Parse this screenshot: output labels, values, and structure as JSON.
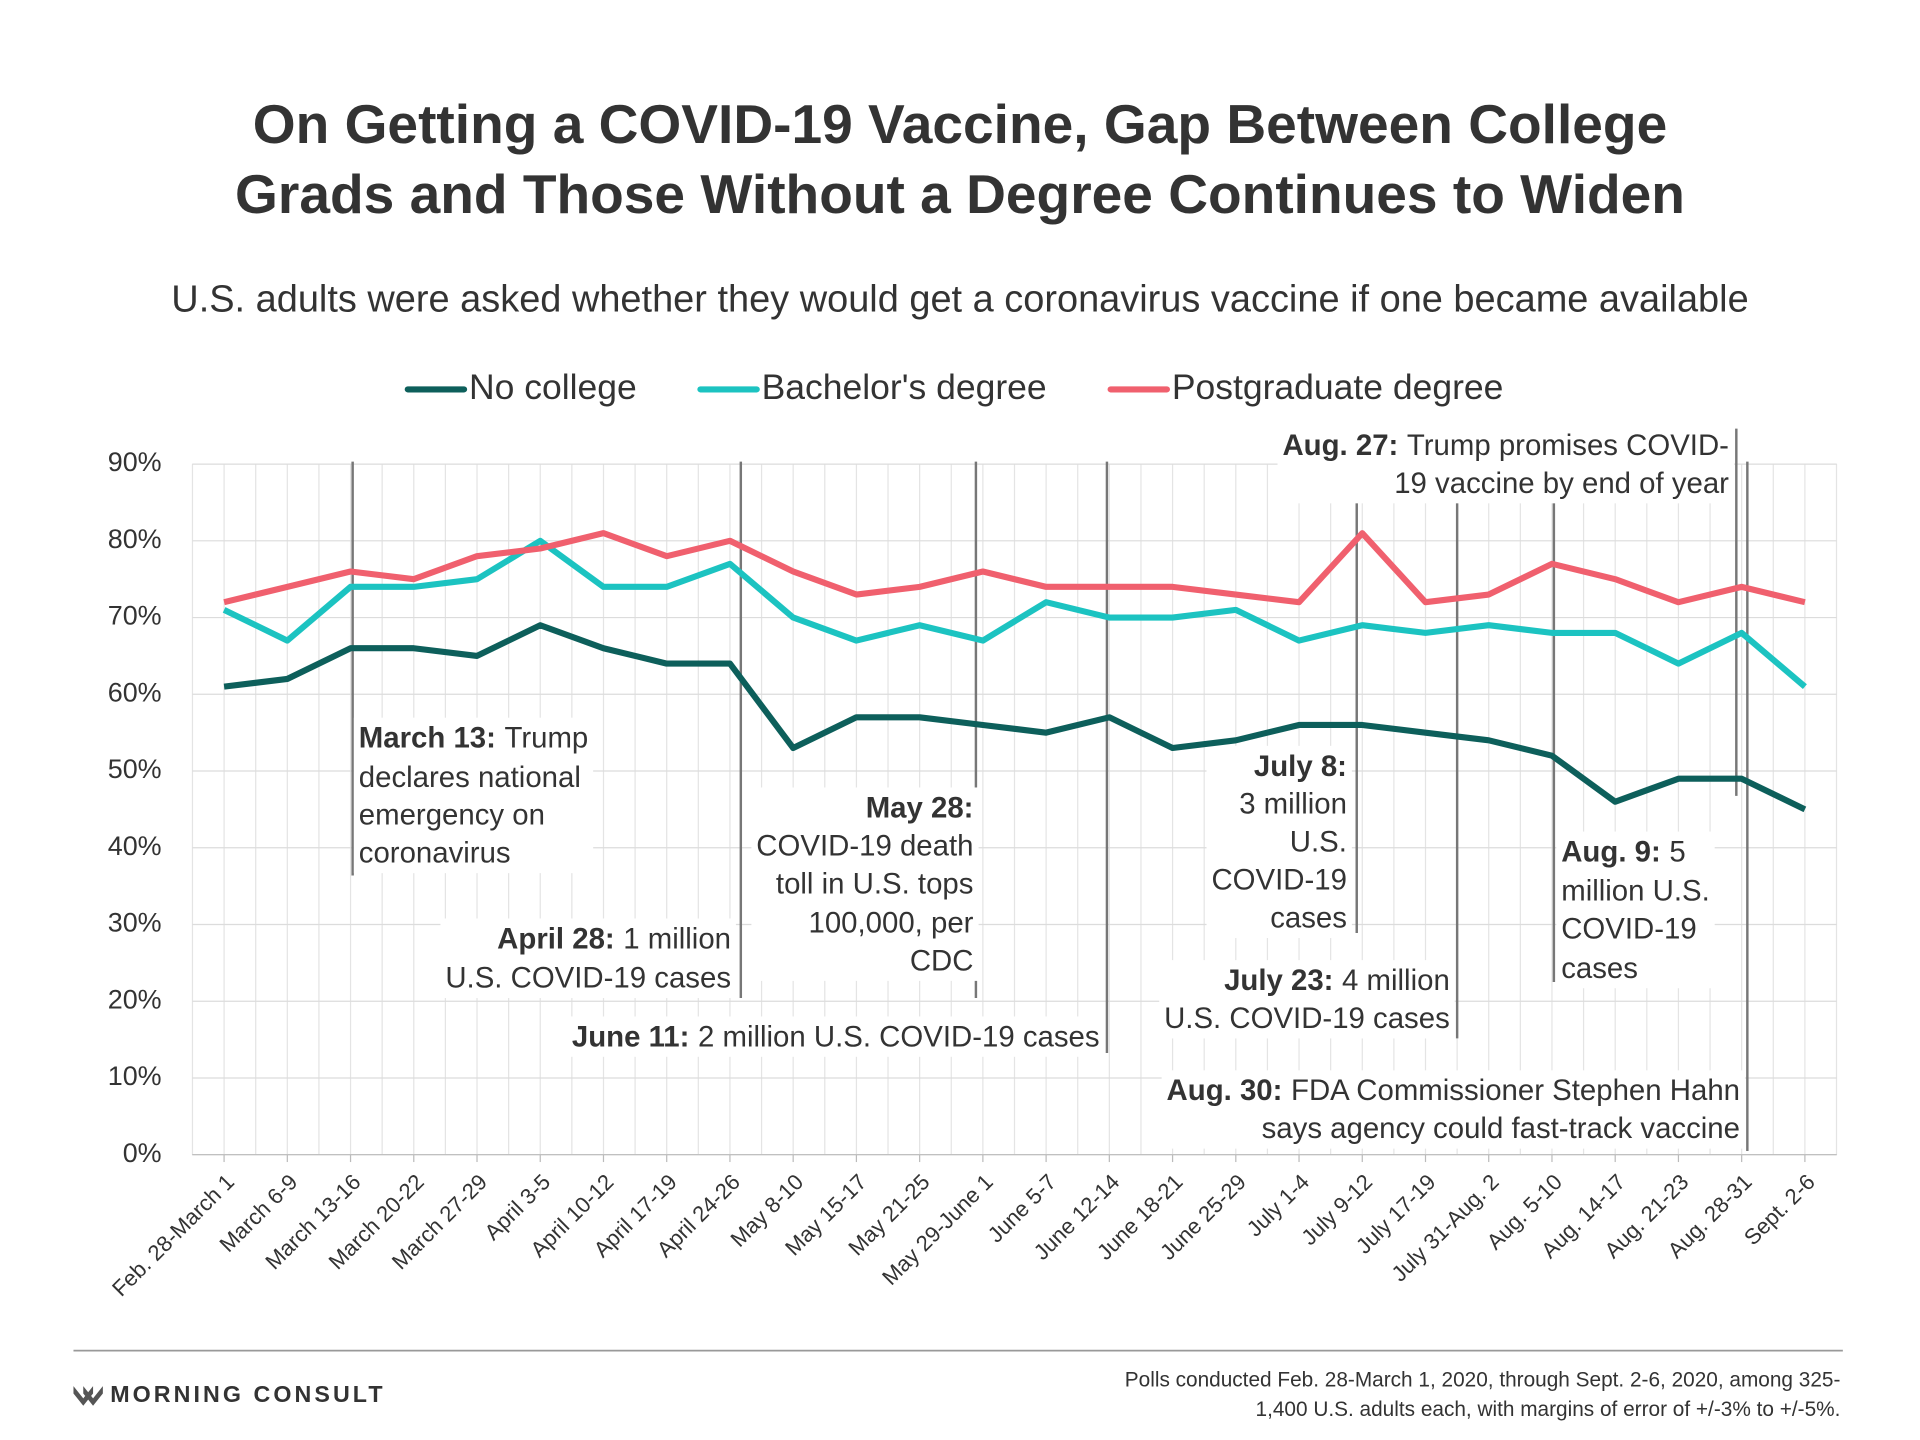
{
  "chart_data": {
    "type": "line",
    "title": [
      "On Getting a COVID-19 Vaccine, Gap Between College",
      "Grads and Those Without a Degree Continues to Widen"
    ],
    "subtitle": "U.S. adults were asked whether they would get a coronavirus vaccine if one became available",
    "categories": [
      "Feb. 28-March 1",
      "March 6-9",
      "March 13-16",
      "March 20-22",
      "March 27-29",
      "April 3-5",
      "April 10-12",
      "April 17-19",
      "April 24-26",
      "May 8-10",
      "May 15-17",
      "May 21-25",
      "May 29-June 1",
      "June 5-7",
      "June 12-14",
      "June 18-21",
      "June 25-29",
      "July 1-4",
      "July 9-12",
      "July 17-19",
      "July 31-Aug. 2",
      "Aug. 5-10",
      "Aug. 14-17",
      "Aug. 21-23",
      "Aug. 28-31",
      "Sept. 2-6"
    ],
    "series": [
      {
        "name": "No college",
        "color": "#0d5f5b",
        "values": [
          61,
          62,
          66,
          66,
          65,
          69,
          66,
          64,
          64,
          53,
          57,
          57,
          56,
          55,
          57,
          53,
          54,
          56,
          56,
          55,
          54,
          52,
          46,
          49,
          49,
          45
        ]
      },
      {
        "name": "Bachelor's degree",
        "color": "#1cc3c1",
        "values": [
          71,
          67,
          74,
          74,
          75,
          80,
          74,
          74,
          77,
          70,
          67,
          69,
          67,
          72,
          70,
          70,
          71,
          67,
          69,
          68,
          69,
          68,
          68,
          64,
          68,
          61
        ]
      },
      {
        "name": "Postgraduate degree",
        "color": "#f0606e",
        "values": [
          72,
          74,
          76,
          75,
          78,
          79,
          81,
          78,
          80,
          76,
          73,
          74,
          76,
          74,
          74,
          74,
          73,
          72,
          81,
          72,
          73,
          77,
          75,
          72,
          74,
          72
        ]
      }
    ],
    "ylim": [
      0,
      90
    ],
    "yticks": [
      {
        "value": 0,
        "label": "0%"
      },
      {
        "value": 10,
        "label": "10%"
      },
      {
        "value": 20,
        "label": "20%"
      },
      {
        "value": 30,
        "label": "30%"
      },
      {
        "value": 40,
        "label": "40%"
      },
      {
        "value": 50,
        "label": "50%"
      },
      {
        "value": 60,
        "label": "60%"
      },
      {
        "value": 70,
        "label": "70%"
      },
      {
        "value": 80,
        "label": "80%"
      },
      {
        "value": 90,
        "label": "90%"
      }
    ],
    "grid": true,
    "legend": "top",
    "annotations": [
      {
        "date": "March 13:",
        "lines": [
          "Trump",
          "declares national",
          "emergency on",
          "coronavirus"
        ]
      },
      {
        "date": "April 28:",
        "lines": [
          "1 million",
          "U.S. COVID-19 cases"
        ]
      },
      {
        "date": "May 28:",
        "lines": [
          "",
          "COVID-19 death",
          "toll in U.S. tops",
          "100,000, per",
          "CDC"
        ]
      },
      {
        "date": "June 11:",
        "lines": [
          "2 million U.S. COVID-19 cases"
        ]
      },
      {
        "date": "July 8:",
        "lines": [
          "",
          "3 million",
          "U.S.",
          "COVID-19",
          "cases"
        ]
      },
      {
        "date": "July 23:",
        "lines": [
          "4 million",
          "U.S. COVID-19 cases"
        ]
      },
      {
        "date": "Aug. 9:",
        "lines": [
          "5",
          "million U.S.",
          "COVID-19",
          "cases"
        ]
      },
      {
        "date": "Aug. 27:",
        "lines": [
          "Trump promises COVID-",
          "19 vaccine by end of year"
        ]
      },
      {
        "date": "Aug. 30:",
        "lines": [
          "FDA Commissioner Stephen Hahn",
          "says agency could fast-track vaccine"
        ]
      }
    ]
  },
  "footer": {
    "logo": "MORNING CONSULT",
    "note": [
      "Polls conducted Feb. 28-March 1, 2020, through Sept. 2-6, 2020, among 325-",
      "1,400 U.S. adults each, with margins of error of +/-3% to +/-5%."
    ]
  }
}
